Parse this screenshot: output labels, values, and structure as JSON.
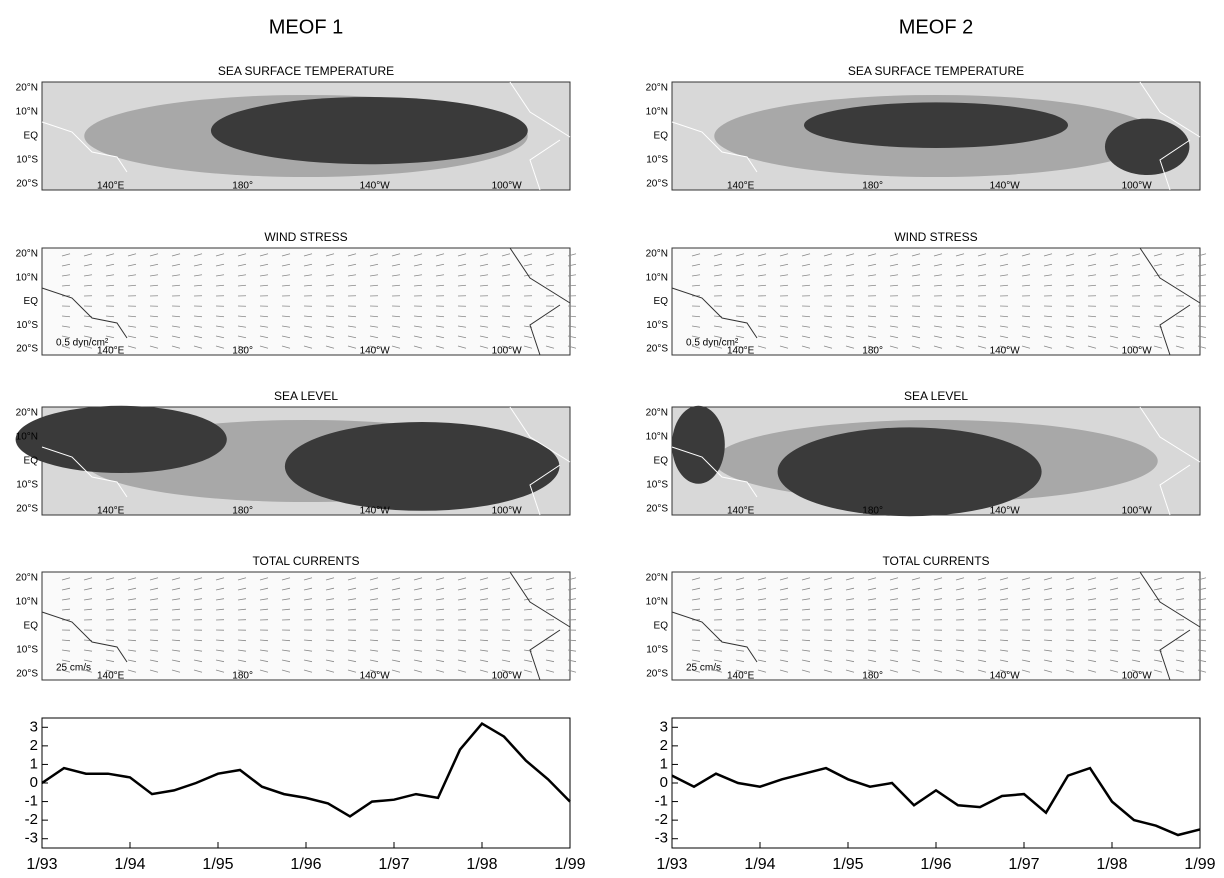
{
  "columns": [
    {
      "title": "MEOF 1",
      "maps": [
        {
          "title": "SEA SURFACE TEMPERATURE"
        },
        {
          "title": "WIND STRESS",
          "note": "0.5 dyn/cm²"
        },
        {
          "title": "SEA LEVEL"
        },
        {
          "title": "TOTAL CURRENTS",
          "note": "25 cm/s"
        }
      ]
    },
    {
      "title": "MEOF 2",
      "maps": [
        {
          "title": "SEA SURFACE TEMPERATURE"
        },
        {
          "title": "WIND STRESS",
          "note": "0.5 dyn/cm²"
        },
        {
          "title": "SEA LEVEL"
        },
        {
          "title": "TOTAL CURRENTS",
          "note": "25 cm/s"
        }
      ]
    }
  ],
  "map_axes": {
    "lat": [
      "20°N",
      "10°N",
      "EQ",
      "10°S",
      "20°S"
    ],
    "lon": [
      "140°E",
      "180°",
      "140°W",
      "100°W"
    ]
  },
  "chart_data": [
    {
      "type": "line",
      "color": "#000000",
      "x": [
        1993,
        1993.25,
        1993.5,
        1993.75,
        1994,
        1994.25,
        1994.5,
        1994.75,
        1995,
        1995.25,
        1995.5,
        1995.75,
        1996,
        1996.25,
        1996.5,
        1996.75,
        1997,
        1997.25,
        1997.5,
        1997.75,
        1998,
        1998.25,
        1998.5,
        1998.75,
        1999
      ],
      "values": [
        0.0,
        0.8,
        0.5,
        0.5,
        0.3,
        -0.6,
        -0.4,
        0.0,
        0.5,
        0.7,
        -0.2,
        -0.6,
        -0.8,
        -1.1,
        -1.8,
        -1.0,
        -0.9,
        -0.6,
        -0.8,
        1.8,
        3.2,
        2.5,
        1.2,
        0.2,
        -1.0
      ],
      "xlim": [
        1993,
        1999
      ],
      "ylim": [
        -3.5,
        3.5
      ],
      "yticks": [
        -3,
        -2,
        -1,
        0,
        1,
        2,
        3
      ],
      "xticks": [
        {
          "value": 1993,
          "label": "1/93"
        },
        {
          "value": 1994,
          "label": "1/94"
        },
        {
          "value": 1995,
          "label": "1/95"
        },
        {
          "value": 1996,
          "label": "1/96"
        },
        {
          "value": 1997,
          "label": "1/97"
        },
        {
          "value": 1998,
          "label": "1/98"
        },
        {
          "value": 1999,
          "label": "1/99"
        }
      ]
    },
    {
      "type": "line",
      "color": "#000000",
      "x": [
        1993,
        1993.25,
        1993.5,
        1993.75,
        1994,
        1994.25,
        1994.5,
        1994.75,
        1995,
        1995.25,
        1995.5,
        1995.75,
        1996,
        1996.25,
        1996.5,
        1996.75,
        1997,
        1997.25,
        1997.5,
        1997.75,
        1998,
        1998.25,
        1998.5,
        1998.75,
        1999
      ],
      "values": [
        0.4,
        -0.2,
        0.5,
        0.0,
        -0.2,
        0.2,
        0.5,
        0.8,
        0.2,
        -0.2,
        0.0,
        -1.2,
        -0.4,
        -1.2,
        -1.3,
        -0.7,
        -0.6,
        -1.6,
        0.4,
        0.8,
        -1.0,
        -2.0,
        -2.3,
        -2.8,
        -2.5
      ],
      "xlim": [
        1993,
        1999
      ],
      "ylim": [
        -3.5,
        3.5
      ],
      "yticks": [
        -3,
        -2,
        -1,
        0,
        1,
        2,
        3
      ],
      "xticks": [
        {
          "value": 1993,
          "label": "1/93"
        },
        {
          "value": 1994,
          "label": "1/94"
        },
        {
          "value": 1995,
          "label": "1/95"
        },
        {
          "value": 1996,
          "label": "1/96"
        },
        {
          "value": 1997,
          "label": "1/97"
        },
        {
          "value": 1998,
          "label": "1/98"
        },
        {
          "value": 1999,
          "label": "1/99"
        }
      ]
    }
  ]
}
